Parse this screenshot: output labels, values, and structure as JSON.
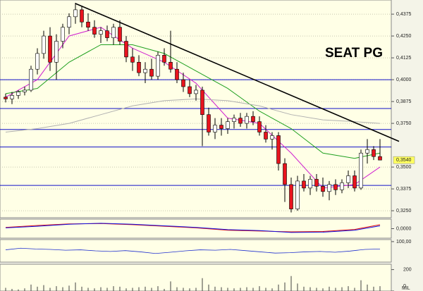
{
  "chart_data": {
    "type": "candlestick",
    "title": "SEAT PG",
    "ylim": [
      0.321,
      0.4456
    ],
    "yticks": [
      {
        "value": 0.4375,
        "label": "0,4375"
      },
      {
        "value": 0.425,
        "label": "0,4250"
      },
      {
        "value": 0.4125,
        "label": "0,4125"
      },
      {
        "value": 0.4,
        "label": "0,4000"
      },
      {
        "value": 0.3875,
        "label": "0,3875"
      },
      {
        "value": 0.375,
        "label": "0,3750"
      },
      {
        "value": 0.35,
        "label": "0,3500"
      },
      {
        "value": 0.3375,
        "label": "0,3375"
      },
      {
        "value": 0.325,
        "label": "0,3250"
      }
    ],
    "last_price": {
      "value": 0.354,
      "label": "0,3540"
    },
    "grid": true,
    "up_color": "#ffffff",
    "down_color": "#e8141e",
    "candles": [
      [
        0.39,
        0.392,
        0.387,
        0.389
      ],
      [
        0.389,
        0.393,
        0.386,
        0.391
      ],
      [
        0.391,
        0.394,
        0.389,
        0.393
      ],
      [
        0.393,
        0.396,
        0.391,
        0.394
      ],
      [
        0.394,
        0.408,
        0.393,
        0.406
      ],
      [
        0.406,
        0.418,
        0.403,
        0.415
      ],
      [
        0.415,
        0.428,
        0.412,
        0.425
      ],
      [
        0.425,
        0.43,
        0.405,
        0.41
      ],
      [
        0.41,
        0.426,
        0.4,
        0.422
      ],
      [
        0.422,
        0.432,
        0.418,
        0.43
      ],
      [
        0.43,
        0.438,
        0.426,
        0.436
      ],
      [
        0.436,
        0.444,
        0.432,
        0.44
      ],
      [
        0.44,
        0.442,
        0.43,
        0.433
      ],
      [
        0.433,
        0.438,
        0.428,
        0.43
      ],
      [
        0.43,
        0.434,
        0.424,
        0.426
      ],
      [
        0.426,
        0.43,
        0.421,
        0.428
      ],
      [
        0.428,
        0.431,
        0.422,
        0.424
      ],
      [
        0.424,
        0.432,
        0.42,
        0.43
      ],
      [
        0.43,
        0.434,
        0.42,
        0.422
      ],
      [
        0.422,
        0.425,
        0.41,
        0.413
      ],
      [
        0.413,
        0.418,
        0.405,
        0.41
      ],
      [
        0.41,
        0.414,
        0.402,
        0.404
      ],
      [
        0.404,
        0.41,
        0.398,
        0.406
      ],
      [
        0.406,
        0.412,
        0.4,
        0.402
      ],
      [
        0.402,
        0.416,
        0.4,
        0.414
      ],
      [
        0.414,
        0.418,
        0.408,
        0.41
      ],
      [
        0.41,
        0.428,
        0.404,
        0.406
      ],
      [
        0.406,
        0.41,
        0.398,
        0.4
      ],
      [
        0.4,
        0.404,
        0.393,
        0.396
      ],
      [
        0.396,
        0.4,
        0.39,
        0.392
      ],
      [
        0.392,
        0.397,
        0.388,
        0.394
      ],
      [
        0.394,
        0.396,
        0.362,
        0.38
      ],
      [
        0.38,
        0.384,
        0.368,
        0.37
      ],
      [
        0.37,
        0.378,
        0.366,
        0.374
      ],
      [
        0.374,
        0.378,
        0.368,
        0.372
      ],
      [
        0.372,
        0.378,
        0.369,
        0.376
      ],
      [
        0.376,
        0.38,
        0.372,
        0.378
      ],
      [
        0.378,
        0.381,
        0.373,
        0.375
      ],
      [
        0.375,
        0.381,
        0.372,
        0.379
      ],
      [
        0.379,
        0.382,
        0.374,
        0.376
      ],
      [
        0.376,
        0.379,
        0.368,
        0.37
      ],
      [
        0.37,
        0.374,
        0.364,
        0.366
      ],
      [
        0.366,
        0.37,
        0.36,
        0.368
      ],
      [
        0.368,
        0.37,
        0.348,
        0.352
      ],
      [
        0.352,
        0.355,
        0.33,
        0.34
      ],
      [
        0.34,
        0.344,
        0.324,
        0.326
      ],
      [
        0.326,
        0.345,
        0.325,
        0.342
      ],
      [
        0.342,
        0.346,
        0.336,
        0.338
      ],
      [
        0.338,
        0.345,
        0.334,
        0.343
      ],
      [
        0.343,
        0.346,
        0.336,
        0.339
      ],
      [
        0.339,
        0.344,
        0.333,
        0.336
      ],
      [
        0.336,
        0.342,
        0.331,
        0.34
      ],
      [
        0.34,
        0.343,
        0.334,
        0.337
      ],
      [
        0.337,
        0.343,
        0.335,
        0.341
      ],
      [
        0.341,
        0.348,
        0.338,
        0.345
      ],
      [
        0.345,
        0.348,
        0.336,
        0.338
      ],
      [
        0.338,
        0.36,
        0.337,
        0.358
      ],
      [
        0.358,
        0.366,
        0.352,
        0.36
      ],
      [
        0.36,
        0.362,
        0.354,
        0.356
      ],
      [
        0.356,
        0.366,
        0.354,
        0.354
      ]
    ],
    "overlay_x": [
      0,
      5,
      10,
      15,
      20,
      25,
      30,
      35,
      40,
      45,
      50,
      55,
      59
    ],
    "overlays": [
      {
        "color": "#d020d0",
        "values": [
          0.39,
          0.4,
          0.425,
          0.43,
          0.418,
          0.41,
          0.398,
          0.378,
          0.375,
          0.358,
          0.338,
          0.34,
          0.35
        ]
      },
      {
        "color": "#20a020",
        "values": [
          0.392,
          0.395,
          0.41,
          0.42,
          0.42,
          0.415,
          0.405,
          0.395,
          0.382,
          0.372,
          0.358,
          0.355,
          0.358
        ]
      },
      {
        "color": "#b0b0b0",
        "values": [
          0.37,
          0.372,
          0.375,
          0.38,
          0.385,
          0.388,
          0.389,
          0.388,
          0.385,
          0.38,
          0.377,
          0.376,
          0.375
        ]
      }
    ],
    "trend_line": {
      "color": "#000000",
      "x": [
        11,
        62
      ],
      "values": [
        0.4436,
        0.3647
      ]
    },
    "levels": {
      "color": "#1010c8",
      "values": [
        0.4,
        0.3835,
        0.3715,
        0.3615,
        0.3395
      ]
    },
    "macd": {
      "ylim": [
        -0.006,
        0.006
      ],
      "yticks": [
        {
          "value": 0,
          "label": "0,0000"
        }
      ],
      "series": [
        {
          "color": "#e01010",
          "values": [
            0.0008,
            0.002,
            0.003,
            0.0032,
            0.0025,
            0.0015,
            0.0005,
            -0.001,
            -0.0015,
            -0.002,
            -0.0018,
            -0.0005,
            0.0025
          ]
        },
        {
          "color": "#1010e0",
          "values": [
            0.0005,
            0.0015,
            0.0028,
            0.0034,
            0.0028,
            0.0018,
            0.0008,
            -0.0006,
            -0.0012,
            -0.0024,
            -0.0022,
            -0.001,
            0.0018
          ]
        }
      ]
    },
    "rsi": {
      "ylim": [
        0,
        110
      ],
      "yticks": [
        {
          "value": 100,
          "label": "100,00"
        }
      ],
      "color": "#2030d0",
      "values": [
        60,
        68,
        64,
        62,
        58,
        60,
        55,
        52,
        56,
        50,
        42,
        48,
        55,
        60,
        58,
        62,
        56,
        50,
        44,
        46,
        50,
        52,
        48,
        54,
        62,
        64
      ]
    },
    "volume": {
      "ylim": [
        0,
        250
      ],
      "yticks": [
        200,
        0
      ],
      "unit": "MIL",
      "color": "#404040",
      "values": [
        30,
        20,
        15,
        25,
        60,
        40,
        55,
        30,
        45,
        35,
        50,
        80,
        40,
        30,
        25,
        35,
        30,
        45,
        40,
        25,
        30,
        35,
        40,
        30,
        45,
        20,
        90,
        35,
        30,
        25,
        30,
        120,
        60,
        40,
        35,
        30,
        25,
        30,
        35,
        30,
        45,
        30,
        25,
        60,
        80,
        140,
        70,
        40,
        35,
        30,
        25,
        40,
        30,
        35,
        45,
        30,
        100,
        60,
        40,
        45
      ]
    }
  }
}
